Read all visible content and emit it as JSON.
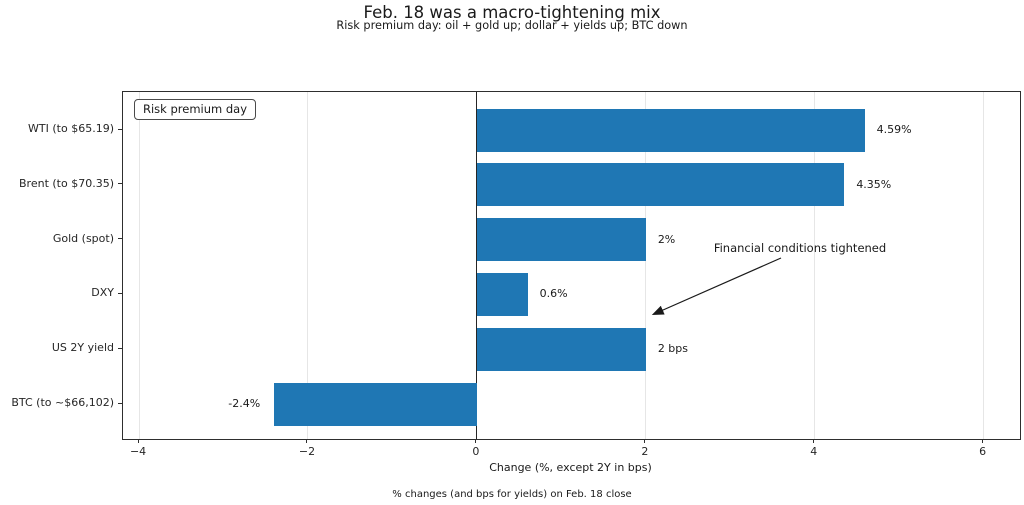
{
  "figure": {
    "title": "Feb. 18 was a macro-tightening mix",
    "subtitle": "Risk premium day: oil + gold up; dollar + yields up; BTC down",
    "footer": "% changes (and bps for yields) on Feb. 18 close"
  },
  "legend": {
    "label": "Risk premium day"
  },
  "annotation": {
    "text": "Financial conditions tightened"
  },
  "chart_data": {
    "type": "bar",
    "orientation": "horizontal",
    "title": "Feb. 18 was a macro-tightening mix",
    "subtitle": "Risk premium day: oil + gold up; dollar + yields up; BTC down",
    "categories": [
      "WTI (to $65.19)",
      "Brent (to $70.35)",
      "Gold (spot)",
      "DXY",
      "US 2Y yield",
      "BTC (to ~$66,102)"
    ],
    "values": [
      4.59,
      4.35,
      2.0,
      0.6,
      2.0,
      -2.4
    ],
    "value_labels": [
      "4.59%",
      "4.35%",
      "2%",
      "0.6%",
      "2 bps",
      "-2.4%"
    ],
    "xlabel": "Change (%, except 2Y in bps)",
    "ylabel": "",
    "xlim": [
      -4.19,
      6.43
    ],
    "xticks": [
      -4,
      -2,
      0,
      2,
      4,
      6
    ],
    "xtick_labels": [
      "−4",
      "−2",
      "0",
      "2",
      "4",
      "6"
    ],
    "grid": "vertical-light",
    "zero_line": true,
    "legend_position": "upper-left",
    "bar_color": "#1f77b4",
    "annotation": {
      "text": "Financial conditions tightened",
      "points_to": {
        "x": 2.05,
        "row": "US 2Y yield"
      }
    },
    "footnote": "% changes (and bps for yields) on Feb. 18 close"
  }
}
